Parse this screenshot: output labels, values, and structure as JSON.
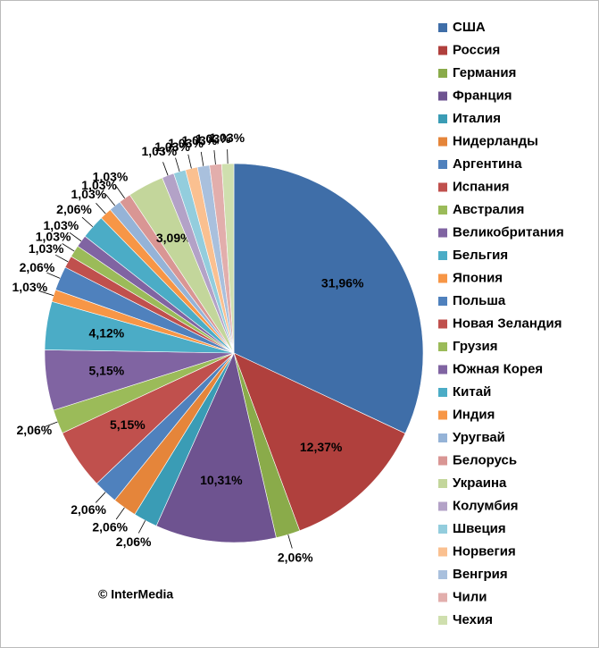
{
  "chart_data": {
    "type": "pie",
    "categories": [
      "США",
      "Россия",
      "Германия",
      "Франция",
      "Италия",
      "Нидерланды",
      "Аргентина",
      "Испания",
      "Австралия",
      "Великобритания",
      "Бельгия",
      "Япония",
      "Польша",
      "Новая Зеландия",
      "Грузия",
      "Южная Корея",
      "Китай",
      "Индия",
      "Уругвай",
      "Белорусь",
      "Украина",
      "Колумбия",
      "Швеция",
      "Норвегия",
      "Венгрия",
      "Чили",
      "Чехия"
    ],
    "values": [
      31.96,
      12.37,
      2.06,
      10.31,
      2.06,
      2.06,
      2.06,
      5.15,
      2.06,
      5.15,
      4.12,
      1.03,
      2.06,
      1.03,
      1.03,
      1.03,
      2.06,
      1.03,
      1.03,
      1.03,
      3.09,
      1.03,
      1.03,
      1.03,
      1.03,
      1.03,
      1.03
    ],
    "value_labels": [
      "31,96%",
      "12,37%",
      "2,06%",
      "10,31%",
      "2,06%",
      "2,06%",
      "2,06%",
      "5,15%",
      "2,06%",
      "5,15%",
      "4,12%",
      "1,03%",
      "2,06%",
      "1,03%",
      "1,03%",
      "1,03%",
      "2,06%",
      "1,03%",
      "1,03%",
      "1,03%",
      "3,09%",
      "1,03%",
      "1,03%",
      "1,03%",
      "1,03%",
      "1,03%",
      "1,03%"
    ],
    "colors": [
      "#3f6ea8",
      "#b0403d",
      "#8aab4a",
      "#6e5390",
      "#3a9cb5",
      "#e5853a",
      "#4f81bd",
      "#c0504d",
      "#9bbb59",
      "#8064a2",
      "#4bacc6",
      "#f79646",
      "#4f81bd",
      "#c0504d",
      "#9bbb59",
      "#8064a2",
      "#4bacc6",
      "#f79646",
      "#95b3d7",
      "#d99694",
      "#c3d69b",
      "#b3a2c7",
      "#93cddd",
      "#fac090",
      "#a9c0dd",
      "#e2aeac",
      "#cfdfae"
    ],
    "copyright": "© InterMedia"
  }
}
